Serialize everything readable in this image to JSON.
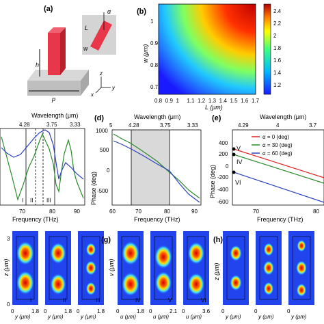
{
  "panels": {
    "a": {
      "label": "(a)",
      "h": "h",
      "p": "p",
      "L": "L",
      "w": "w",
      "alpha": "α",
      "x": "x",
      "y": "y",
      "z": "z"
    },
    "b": {
      "label": "(b)",
      "ylabel": "w (μm)",
      "xlabel": "L (μm)",
      "xticks": [
        "0.8",
        "0.9",
        "1",
        "1.1",
        "1.2",
        "1.3",
        "1.4",
        "1.5",
        "1.6",
        "1.7"
      ],
      "yticks": [
        "1",
        "0.9",
        "0.8",
        "0.7"
      ],
      "cbticks": [
        "2.4",
        "2.2",
        "2",
        "1.8",
        "1.6",
        "1.4",
        "1.2"
      ]
    },
    "c": {
      "top_label": "Wavelength (μm)",
      "top_ticks": [
        "4.28",
        "3.75",
        "3.33"
      ],
      "xlabel": "Frequency (THz)",
      "xticks": [
        "70",
        "80",
        "90"
      ],
      "regions": [
        "I",
        "II",
        "III"
      ]
    },
    "d": {
      "label": "(d)",
      "top_label": "Wavelength (μm)",
      "top_ticks": [
        "5",
        "4.28",
        "3.75",
        "3.33"
      ],
      "ylabel": "Phase (deg)",
      "xlabel": "Frequency (THz)",
      "yticks": [
        "1000",
        "500",
        "0",
        "-500"
      ],
      "xticks": [
        "60",
        "70",
        "80",
        "90"
      ]
    },
    "e": {
      "label": "(e)",
      "top_label": "Wavelength (μm)",
      "top_ticks": [
        "4.29",
        "4",
        "3.7"
      ],
      "ylabel": "Phase (deg)",
      "xlabel": "Frequency (THz)",
      "yticks": [
        "400",
        "200",
        "0",
        "-200",
        "-400",
        "-600"
      ],
      "xticks": [
        "70",
        "80"
      ],
      "legend": [
        "α = 0 (deg)",
        "α = 30 (deg)",
        "α = 60 (deg)"
      ],
      "markers": [
        "V",
        "IV",
        "VI"
      ]
    },
    "f": {
      "ylabel": "z (μm)",
      "z_top": "3",
      "z_bot": "0",
      "maps": [
        {
          "tag": "I",
          "xlab": "y (μm)",
          "xmax": "1.8"
        },
        {
          "tag": "II",
          "xlab": "y (μm)",
          "xmax": "1.8"
        },
        {
          "tag": "III",
          "xlab": "y (μm)",
          "xmax": "1.8"
        }
      ]
    },
    "g": {
      "label": "(g)",
      "ylabel": "v (μm)",
      "maps": [
        {
          "tag": "IV",
          "xlab": "u (μm)",
          "xmax": "1.8"
        },
        {
          "tag": "V",
          "xlab": "u (μm)",
          "xmax": "2.1"
        },
        {
          "tag": "VI",
          "xlab": "u (μm)",
          "xmax": "3.6"
        }
      ]
    },
    "h": {
      "label": "(h)",
      "ylabel": "z (μm)",
      "maps": [
        {
          "tag": "",
          "xlab": "y (μm)",
          "xmax": ""
        },
        {
          "tag": "",
          "xlab": "y (μm)",
          "xmax": ""
        },
        {
          "tag": "",
          "xlab": "y (μm)",
          "xmax": ""
        }
      ]
    }
  },
  "colors": {
    "red": "#e02020",
    "green": "#2a8a2a",
    "blue": "#2a3fbf",
    "pillar": "#e8374a",
    "shade": "#d9d9d9"
  }
}
